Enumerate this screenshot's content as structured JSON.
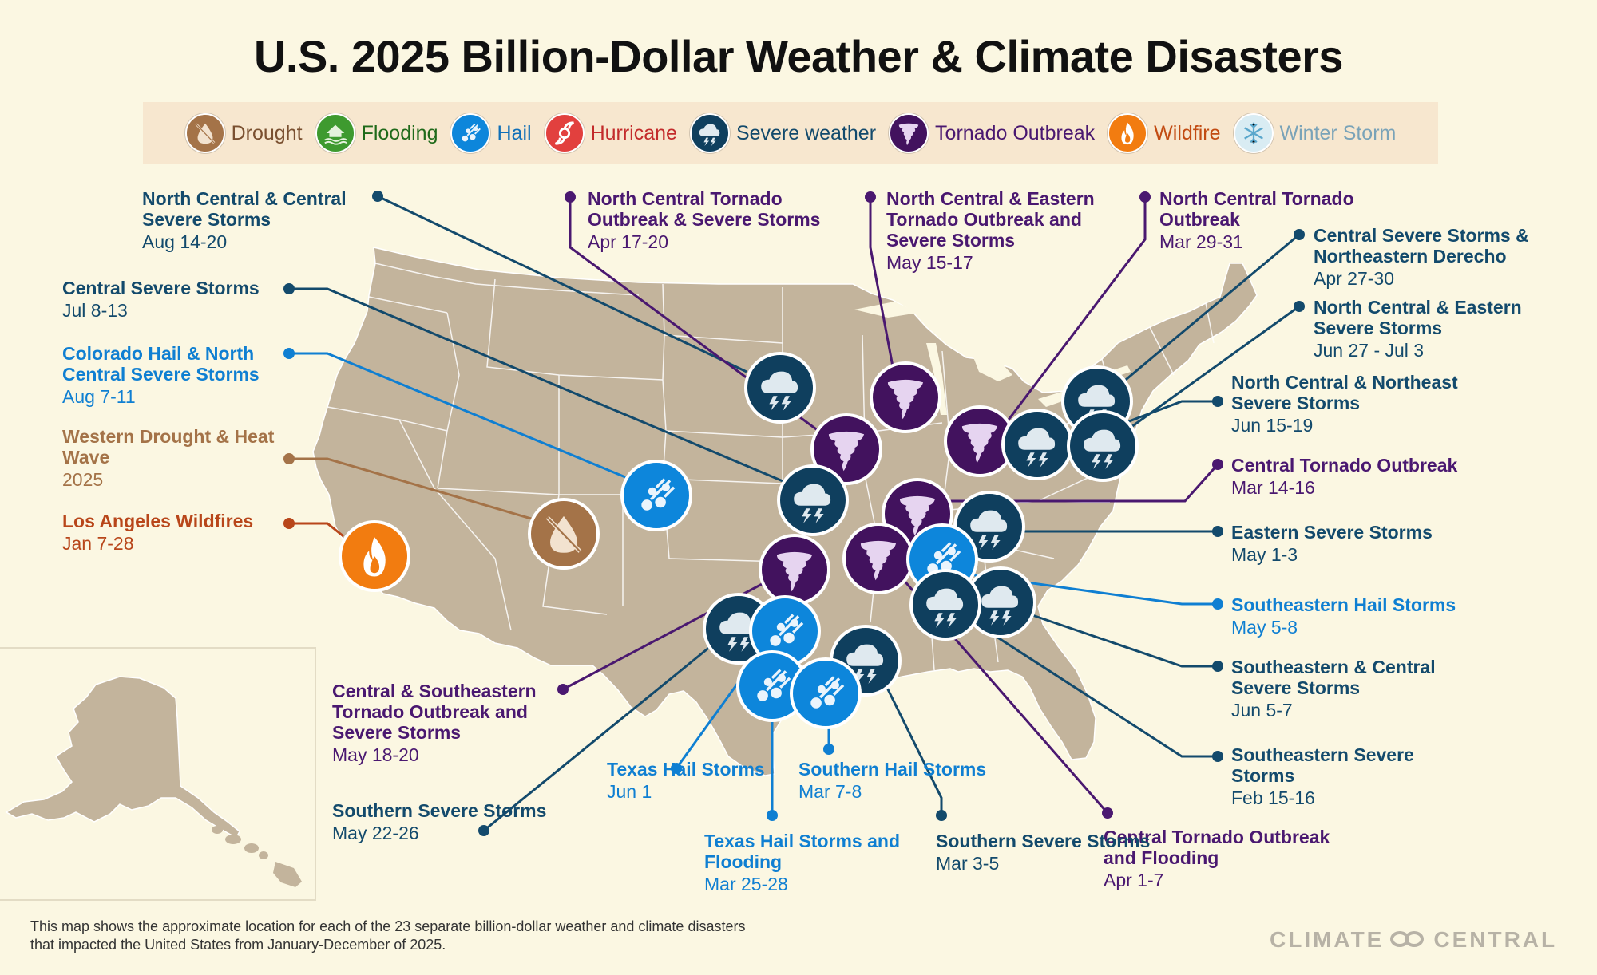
{
  "title": "U.S. 2025 Billion-Dollar Weather & Climate Disasters",
  "legend": [
    {
      "label": "Drought",
      "color": "#a47348",
      "text_color": "#7a5030",
      "icon": "drought-icon"
    },
    {
      "label": "Flooding",
      "color": "#3e9a2f",
      "text_color": "#1f6a1a",
      "icon": "flooding-icon"
    },
    {
      "label": "Hail",
      "color": "#0d86db",
      "text_color": "#0f6fb8",
      "icon": "hail-icon"
    },
    {
      "label": "Hurricane",
      "color": "#e2403e",
      "text_color": "#c32b2b",
      "icon": "hurricane-icon"
    },
    {
      "label": "Severe weather",
      "color": "#0f3f5e",
      "text_color": "#134a6c",
      "icon": "severe-weather-icon"
    },
    {
      "label": "Tornado Outbreak",
      "color": "#42125e",
      "text_color": "#4a1870",
      "icon": "tornado-icon"
    },
    {
      "label": "Wildfire",
      "color": "#f27c10",
      "text_color": "#c24b12",
      "icon": "wildfire-icon"
    },
    {
      "label": "Winter Storm",
      "color": "#d9ecf3",
      "text_color": "#7aa3b8",
      "icon": "winter-storm-icon"
    }
  ],
  "events": [
    {
      "name": "North Central & Central Severe Storms",
      "date": "Aug 14-20",
      "type": "severe"
    },
    {
      "name": "Central Severe Storms",
      "date": "Jul 8-13",
      "type": "severe"
    },
    {
      "name": "Colorado Hail & North Central Severe Storms",
      "date": "Aug 7-11",
      "type": "hail"
    },
    {
      "name": "Western Drought & Heat Wave",
      "date": "2025",
      "type": "drought"
    },
    {
      "name": "Los Angeles Wildfires",
      "date": "Jan 7-28",
      "type": "wildfire"
    },
    {
      "name": "North Central Tornado Outbreak & Severe Storms",
      "date": "Apr 17-20",
      "type": "tornado"
    },
    {
      "name": "North Central & Eastern Tornado Outbreak and Severe Storms",
      "date": "May 15-17",
      "type": "tornado"
    },
    {
      "name": "North Central Tornado Outbreak",
      "date": "Mar 29-31",
      "type": "tornado"
    },
    {
      "name": "Central Severe Storms & Northeastern Derecho",
      "date": "Apr 27-30",
      "type": "severe"
    },
    {
      "name": "North Central & Eastern Severe Storms",
      "date": "Jun 27 - Jul 3",
      "type": "severe"
    },
    {
      "name": "North Central & Northeast Severe Storms",
      "date": "Jun 15-19",
      "type": "severe"
    },
    {
      "name": "Central Tornado Outbreak",
      "date": "Mar 14-16",
      "type": "tornado"
    },
    {
      "name": "Eastern Severe Storms",
      "date": "May 1-3",
      "type": "severe"
    },
    {
      "name": "Southeastern Hail Storms",
      "date": "May 5-8",
      "type": "hail"
    },
    {
      "name": "Southeastern & Central Severe Storms",
      "date": "Jun 5-7",
      "type": "severe"
    },
    {
      "name": "Southeastern Severe Storms",
      "date": "Feb 15-16",
      "type": "severe"
    },
    {
      "name": "Central Tornado Outbreak and Flooding",
      "date": "Apr 1-7",
      "type": "tornado"
    },
    {
      "name": "Southern Severe Storms",
      "date": "Mar 3-5",
      "type": "severe"
    },
    {
      "name": "Texas Hail Storms and Flooding",
      "date": "Mar 25-28",
      "type": "hail"
    },
    {
      "name": "Southern Hail Storms",
      "date": "Mar 7-8",
      "type": "hail"
    },
    {
      "name": "Texas Hail Storms",
      "date": "Jun 1",
      "type": "hail"
    },
    {
      "name": "Southern Severe Storms",
      "date": "May 22-26",
      "type": "severe"
    },
    {
      "name": "Central & Southeastern Tornado Outbreak and Severe Storms",
      "date": "May 18-20",
      "type": "tornado"
    }
  ],
  "footnote": [
    "This map shows the approximate location for each of the 23 separate billion-dollar weather and climate disasters",
    "that impacted the United States from January-December of 2025."
  ],
  "brand": {
    "left": "CLIMATE",
    "right": "CENTRAL"
  }
}
